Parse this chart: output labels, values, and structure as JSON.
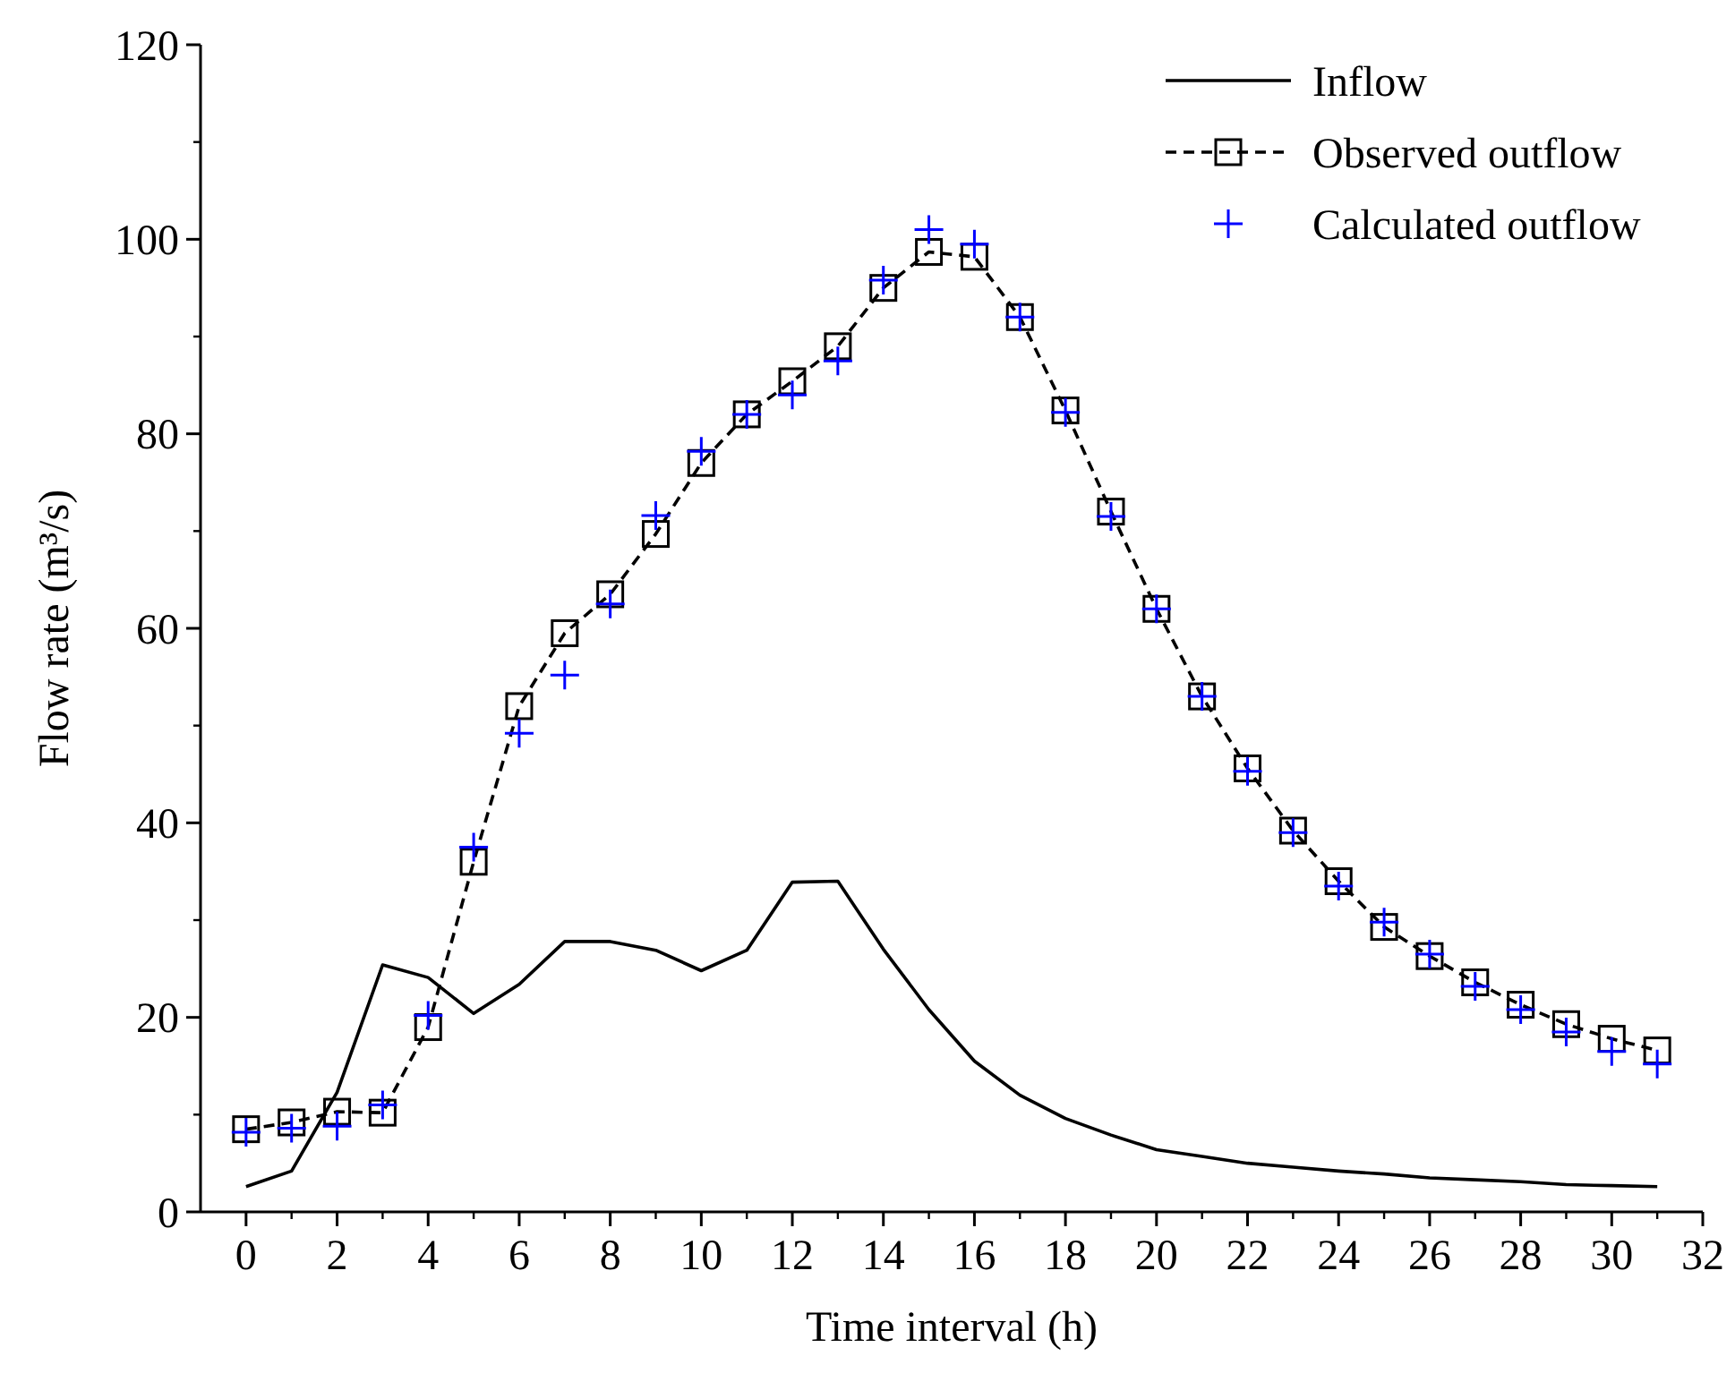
{
  "chart_data": {
    "type": "line",
    "xlabel": "Time interval (h)",
    "ylabel": "Flow rate (m³/s)",
    "x": [
      0,
      1,
      2,
      3,
      4,
      5,
      6,
      7,
      8,
      9,
      10,
      11,
      12,
      13,
      14,
      15,
      16,
      17,
      18,
      19,
      20,
      21,
      22,
      23,
      24,
      25,
      26,
      27,
      28,
      29,
      30,
      31
    ],
    "xlim": [
      -1,
      32
    ],
    "xticks": [
      0,
      2,
      4,
      6,
      8,
      10,
      12,
      14,
      16,
      18,
      20,
      22,
      24,
      26,
      28,
      30,
      32
    ],
    "ylim": [
      0,
      120
    ],
    "yticks": [
      0,
      20,
      40,
      60,
      80,
      100,
      120
    ],
    "grid": false,
    "legend": "top right",
    "series": [
      {
        "name": "Inflow",
        "color": "#000000",
        "marker": "none",
        "line_style": "solid",
        "values": [
          2.6,
          4.2,
          12.3,
          25.4,
          24.1,
          20.4,
          23.4,
          27.8,
          27.8,
          26.9,
          24.8,
          26.9,
          33.9,
          34.0,
          27,
          20.8,
          15.5,
          12,
          9.6,
          7.9,
          6.4,
          5.7,
          5.0,
          4.6,
          4.2,
          3.9,
          3.5,
          3.3,
          3.1,
          2.8,
          2.7,
          2.6
        ]
      },
      {
        "name": "Observed outflow",
        "color": "#000000",
        "marker": "square",
        "line_style": "dashed",
        "values": [
          8.5,
          9.2,
          10.3,
          10.2,
          19,
          36,
          52,
          59.5,
          63.5,
          69.7,
          77,
          82,
          85.4,
          89,
          95,
          98.7,
          98.2,
          92,
          82.4,
          72,
          62,
          53,
          45.6,
          39.2,
          34,
          29.3,
          26.3,
          23.6,
          21.3,
          19.3,
          17.8,
          16.6
        ]
      },
      {
        "name": "Calculated outflow",
        "type": "scatter",
        "color": "#0000ff",
        "marker": "cross",
        "values": [
          8.2,
          8.6,
          8.8,
          11,
          20.2,
          37.5,
          49.2,
          55.2,
          62.5,
          71.6,
          78.2,
          82,
          84,
          87.5,
          95.8,
          101,
          99.5,
          92,
          82.2,
          71.5,
          62,
          53,
          45.3,
          39,
          33.5,
          29.8,
          26.5,
          23.2,
          20.8,
          18.5,
          16.5,
          15.2
        ]
      }
    ]
  }
}
